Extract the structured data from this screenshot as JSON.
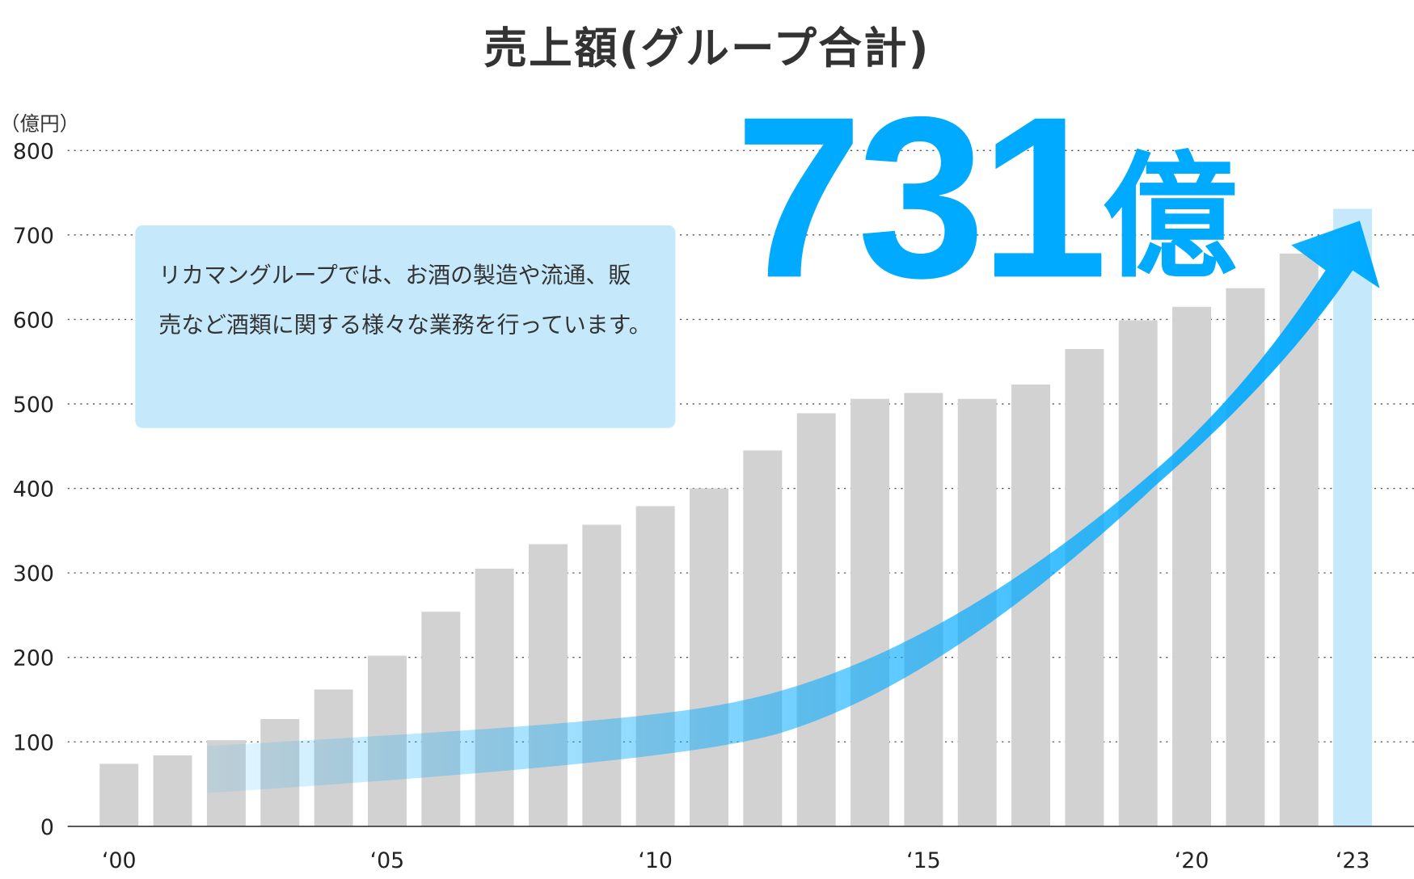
{
  "chart_data": {
    "type": "bar",
    "title": "売上額(グループ合計)",
    "ylabel": "（億円）",
    "xlabel": "",
    "ylim": [
      0,
      800
    ],
    "yticks": [
      0,
      100,
      200,
      300,
      400,
      500,
      600,
      700,
      800
    ],
    "grid": true,
    "categories": [
      "2000",
      "2001",
      "2002",
      "2003",
      "2004",
      "2005",
      "2006",
      "2007",
      "2008",
      "2009",
      "2010",
      "2011",
      "2012",
      "2013",
      "2014",
      "2015",
      "2016",
      "2017",
      "2018",
      "2019",
      "2020",
      "2021",
      "2022",
      "2023"
    ],
    "xtick_labels": [
      {
        "index": 0,
        "label": "‘00"
      },
      {
        "index": 5,
        "label": "‘05"
      },
      {
        "index": 10,
        "label": "‘10"
      },
      {
        "index": 15,
        "label": "‘15"
      },
      {
        "index": 20,
        "label": "‘20"
      },
      {
        "index": 23,
        "label": "‘23"
      }
    ],
    "values": [
      74,
      84,
      102,
      127,
      162,
      202,
      254,
      305,
      334,
      357,
      379,
      400,
      445,
      489,
      506,
      513,
      506,
      523,
      565,
      599,
      615,
      637,
      678,
      731
    ],
    "highlight_index": 23,
    "colors": {
      "bar": "#d2d2d2",
      "highlight": "#c5e9fb",
      "accent": "#00aaff",
      "grid": "#555555"
    },
    "annotation": {
      "number": "731",
      "unit": "億"
    },
    "note": "リカマングループでは、お酒の製造や流通、販売など酒類に関する様々な業務を行っています。"
  }
}
